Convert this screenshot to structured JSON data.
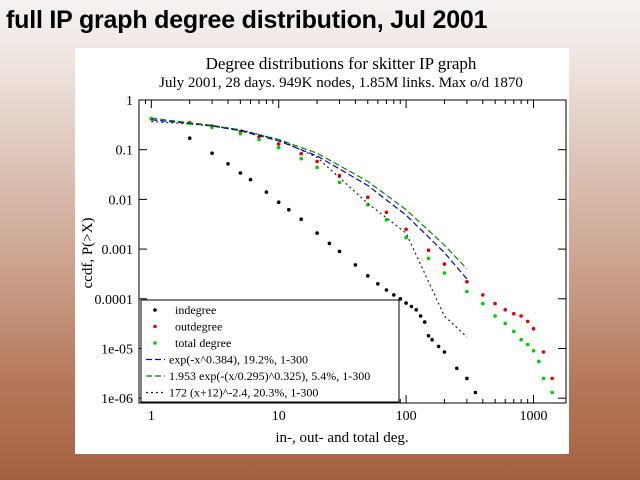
{
  "slide": {
    "title": "full IP graph degree  distribution, Jul 2001"
  },
  "chart_data": {
    "type": "scatter",
    "title": "Degree distributions for skitter IP graph",
    "subtitle": "July 2001, 28 days. 949K nodes, 1.85M links. Max o/d 1870",
    "xlabel": "in-, out- and total deg.",
    "ylabel": "ccdf, P(>X)",
    "xscale": "log",
    "yscale": "log",
    "xlim": [
      0.8,
      1800
    ],
    "ylim": [
      8e-07,
      1
    ],
    "x_ticks": [
      {
        "v": 1,
        "label": "1"
      },
      {
        "v": 10,
        "label": "10"
      },
      {
        "v": 100,
        "label": "100"
      },
      {
        "v": 1000,
        "label": "1000"
      }
    ],
    "y_ticks": [
      {
        "v": 1,
        "label": "1"
      },
      {
        "v": 0.1,
        "label": "0.1"
      },
      {
        "v": 0.01,
        "label": "0.01"
      },
      {
        "v": 0.001,
        "label": "0.001"
      },
      {
        "v": 0.0001,
        "label": "0.0001"
      },
      {
        "v": 1e-05,
        "label": "1e-05"
      },
      {
        "v": 1e-06,
        "label": "1e-06"
      }
    ],
    "legend_position": "bottom-left",
    "series": [
      {
        "name": "indegree",
        "kind": "points",
        "color": "#000000",
        "x": [
          1,
          2,
          3,
          4,
          5,
          6,
          8,
          10,
          12,
          15,
          20,
          25,
          30,
          40,
          50,
          60,
          70,
          80,
          90,
          100,
          110,
          120,
          130,
          140,
          150,
          160,
          180,
          200,
          250,
          300,
          350
        ],
        "y": [
          0.42,
          0.17,
          0.085,
          0.052,
          0.034,
          0.025,
          0.014,
          0.0088,
          0.0062,
          0.004,
          0.0021,
          0.0013,
          0.0009,
          0.00048,
          0.00029,
          0.0002,
          0.00015,
          0.00012,
          0.0001,
          8.2e-05,
          7e-05,
          6e-05,
          4.5e-05,
          3.4e-05,
          1.8e-05,
          1.5e-05,
          1.1e-05,
          8.5e-06,
          4e-06,
          2.5e-06,
          1.3e-06
        ]
      },
      {
        "name": "outdegree",
        "kind": "points",
        "color": "#e00000",
        "x": [
          1,
          2,
          3,
          5,
          7,
          10,
          15,
          20,
          30,
          50,
          70,
          100,
          150,
          200,
          300,
          400,
          500,
          600,
          700,
          800,
          900,
          1000,
          1200,
          1400
        ],
        "y": [
          0.42,
          0.35,
          0.3,
          0.23,
          0.18,
          0.13,
          0.083,
          0.058,
          0.03,
          0.011,
          0.0055,
          0.0025,
          0.00095,
          0.0005,
          0.00022,
          0.00012,
          8e-05,
          6e-05,
          5e-05,
          4.5e-05,
          3.5e-05,
          2.5e-05,
          8.5e-06,
          2.5e-06
        ]
      },
      {
        "name": "total degree",
        "kind": "points",
        "color": "#00cc00",
        "x": [
          1,
          2,
          3,
          5,
          7,
          10,
          15,
          20,
          30,
          50,
          70,
          100,
          150,
          200,
          300,
          400,
          500,
          600,
          700,
          800,
          900,
          1000,
          1100,
          1200,
          1400
        ],
        "y": [
          0.42,
          0.34,
          0.28,
          0.21,
          0.16,
          0.11,
          0.066,
          0.044,
          0.022,
          0.0078,
          0.0039,
          0.0017,
          0.00065,
          0.00033,
          0.00014,
          8e-05,
          4.5e-05,
          3.2e-05,
          2.2e-05,
          1.5e-05,
          1.2e-05,
          9e-06,
          5.5e-06,
          2.5e-06,
          1.3e-06
        ]
      },
      {
        "name": "exp(-x^0.384), 19.2%, 1-300",
        "kind": "line",
        "dash": "6,3",
        "color": "#0000cc",
        "x": [
          1,
          2,
          3,
          5,
          10,
          20,
          50,
          100,
          200,
          300
        ],
        "y": [
          0.4,
          0.34,
          0.3,
          0.24,
          0.15,
          0.075,
          0.019,
          0.0048,
          0.00085,
          0.00025
        ]
      },
      {
        "name": "1.953 exp(-(x/0.295)^0.325), 5.4%, 1-300",
        "kind": "line",
        "dash": "6,3",
        "color": "#008800",
        "x": [
          1,
          2,
          3,
          5,
          10,
          20,
          50,
          100,
          200,
          300
        ],
        "y": [
          0.43,
          0.35,
          0.31,
          0.25,
          0.16,
          0.085,
          0.023,
          0.0062,
          0.0012,
          0.0004
        ]
      },
      {
        "name": "172 (x+12)^-2.4, 20.3%, 1-300",
        "kind": "line",
        "dash": "2,3",
        "color": "#222222",
        "x": [
          1,
          2,
          3,
          5,
          10,
          20,
          50,
          100,
          200,
          300
        ],
        "y": [
          0.37,
          0.33,
          0.3,
          0.25,
          0.16,
          0.07,
          0.0083,
          0.0021,
          4.5e-05,
          1.7e-05
        ]
      }
    ]
  }
}
